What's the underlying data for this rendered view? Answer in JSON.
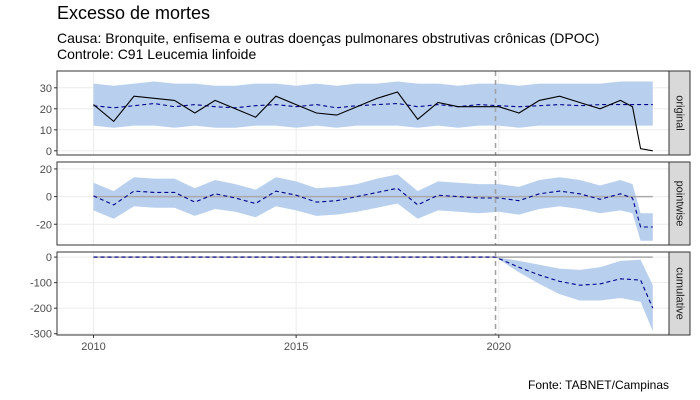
{
  "title": "Excesso de mortes",
  "subtitle_cause": "Causa: Bronquite, enfisema e outras doenças pulmonares obstrutivas crônicas (DPOC)",
  "subtitle_control": "Controle: C91 Leucemia linfoide",
  "caption": "Fonte: TABNET/Campinas",
  "chart_data": {
    "type": "line",
    "x_axis": {
      "ticks": [
        2010,
        2015,
        2020
      ],
      "range": [
        2009.1,
        2024.2
      ]
    },
    "intervention_x": 2019.92,
    "colors": {
      "actual": "#000000",
      "predicted": "#00008b",
      "interval": "#b8cfee",
      "reference": "#a9a9a9",
      "vline": "#a0a0a0"
    },
    "panels": [
      {
        "strip": "original",
        "ylim": [
          -2,
          38
        ],
        "yticks": [
          0,
          10,
          20,
          30
        ],
        "x": [
          2010.0,
          2010.5,
          2011.0,
          2011.5,
          2012.0,
          2012.5,
          2013.0,
          2013.5,
          2014.0,
          2014.5,
          2015.0,
          2015.5,
          2016.0,
          2016.5,
          2017.0,
          2017.5,
          2018.0,
          2018.5,
          2019.0,
          2019.5,
          2020.0,
          2020.5,
          2021.0,
          2021.5,
          2022.0,
          2022.5,
          2023.0,
          2023.3,
          2023.5,
          2023.8
        ],
        "actual": [
          22,
          14,
          26,
          25,
          24,
          18,
          24,
          20,
          16,
          26,
          22,
          18,
          17,
          21,
          25,
          28,
          15,
          23,
          21,
          21,
          21,
          18,
          24,
          26,
          23,
          20,
          24,
          21,
          1,
          0
        ],
        "predicted": [
          21.5,
          20.5,
          21.5,
          22.5,
          21.0,
          22.0,
          21.0,
          20.5,
          21.5,
          22.0,
          21.0,
          22.0,
          20.5,
          21.5,
          22.0,
          22.5,
          21.0,
          22.0,
          21.0,
          22.0,
          21.5,
          21.0,
          21.5,
          22.0,
          21.5,
          22.0,
          22.0,
          22.0,
          22.0,
          22.0
        ],
        "lower": [
          12,
          11,
          12,
          12,
          11,
          12,
          11,
          11,
          12,
          12,
          11,
          12,
          11,
          12,
          12,
          12,
          11,
          12,
          11,
          12,
          12,
          11,
          12,
          12,
          12,
          12,
          12,
          12,
          12,
          12
        ],
        "upper": [
          32,
          31,
          32,
          33,
          32,
          32,
          31,
          31,
          32,
          32,
          31,
          32,
          31,
          32,
          32,
          33,
          32,
          32,
          31,
          32,
          32,
          31,
          32,
          32,
          32,
          32,
          33,
          33,
          33,
          33
        ],
        "reference": null
      },
      {
        "strip": "pointwise",
        "ylim": [
          -35,
          25
        ],
        "yticks": [
          -20,
          0,
          20
        ],
        "x": [
          2010.0,
          2010.5,
          2011.0,
          2011.5,
          2012.0,
          2012.5,
          2013.0,
          2013.5,
          2014.0,
          2014.5,
          2015.0,
          2015.5,
          2016.0,
          2016.5,
          2017.0,
          2017.5,
          2018.0,
          2018.5,
          2019.0,
          2019.5,
          2020.0,
          2020.5,
          2021.0,
          2021.5,
          2022.0,
          2022.5,
          2023.0,
          2023.3,
          2023.5,
          2023.8
        ],
        "predicted": [
          0.5,
          -6,
          4,
          3,
          3,
          -4,
          2,
          -1,
          -5,
          4,
          1,
          -4,
          -3,
          0,
          3,
          6,
          -6,
          1,
          0,
          -1,
          -1,
          -3,
          2,
          4,
          2,
          -2,
          2,
          -1,
          -22,
          -22
        ],
        "lower": [
          -10,
          -16,
          -7,
          -8,
          -8,
          -14,
          -9,
          -11,
          -15,
          -7,
          -10,
          -14,
          -13,
          -11,
          -8,
          -5,
          -16,
          -10,
          -11,
          -12,
          -11,
          -13,
          -9,
          -7,
          -9,
          -12,
          -10,
          -12,
          -32,
          -32
        ],
        "upper": [
          10,
          4,
          14,
          13,
          13,
          6,
          12,
          9,
          5,
          14,
          11,
          6,
          7,
          9,
          13,
          16,
          4,
          11,
          10,
          9,
          9,
          7,
          12,
          14,
          12,
          8,
          12,
          9,
          -12,
          -12
        ],
        "reference": 0
      },
      {
        "strip": "cumulative",
        "ylim": [
          -305,
          20
        ],
        "yticks": [
          0,
          -100,
          -200,
          -300
        ],
        "x": [
          2010.0,
          2019.92,
          2020.5,
          2021.0,
          2021.5,
          2022.0,
          2022.5,
          2023.0,
          2023.5,
          2023.8
        ],
        "predicted": [
          0,
          0,
          -40,
          -70,
          -95,
          -110,
          -105,
          -85,
          -90,
          -200
        ],
        "lower": [
          0,
          0,
          -60,
          -105,
          -145,
          -170,
          -170,
          -160,
          -175,
          -290
        ],
        "upper": [
          0,
          0,
          -15,
          -30,
          -45,
          -50,
          -40,
          -15,
          -10,
          -110
        ],
        "reference": 0
      }
    ]
  }
}
